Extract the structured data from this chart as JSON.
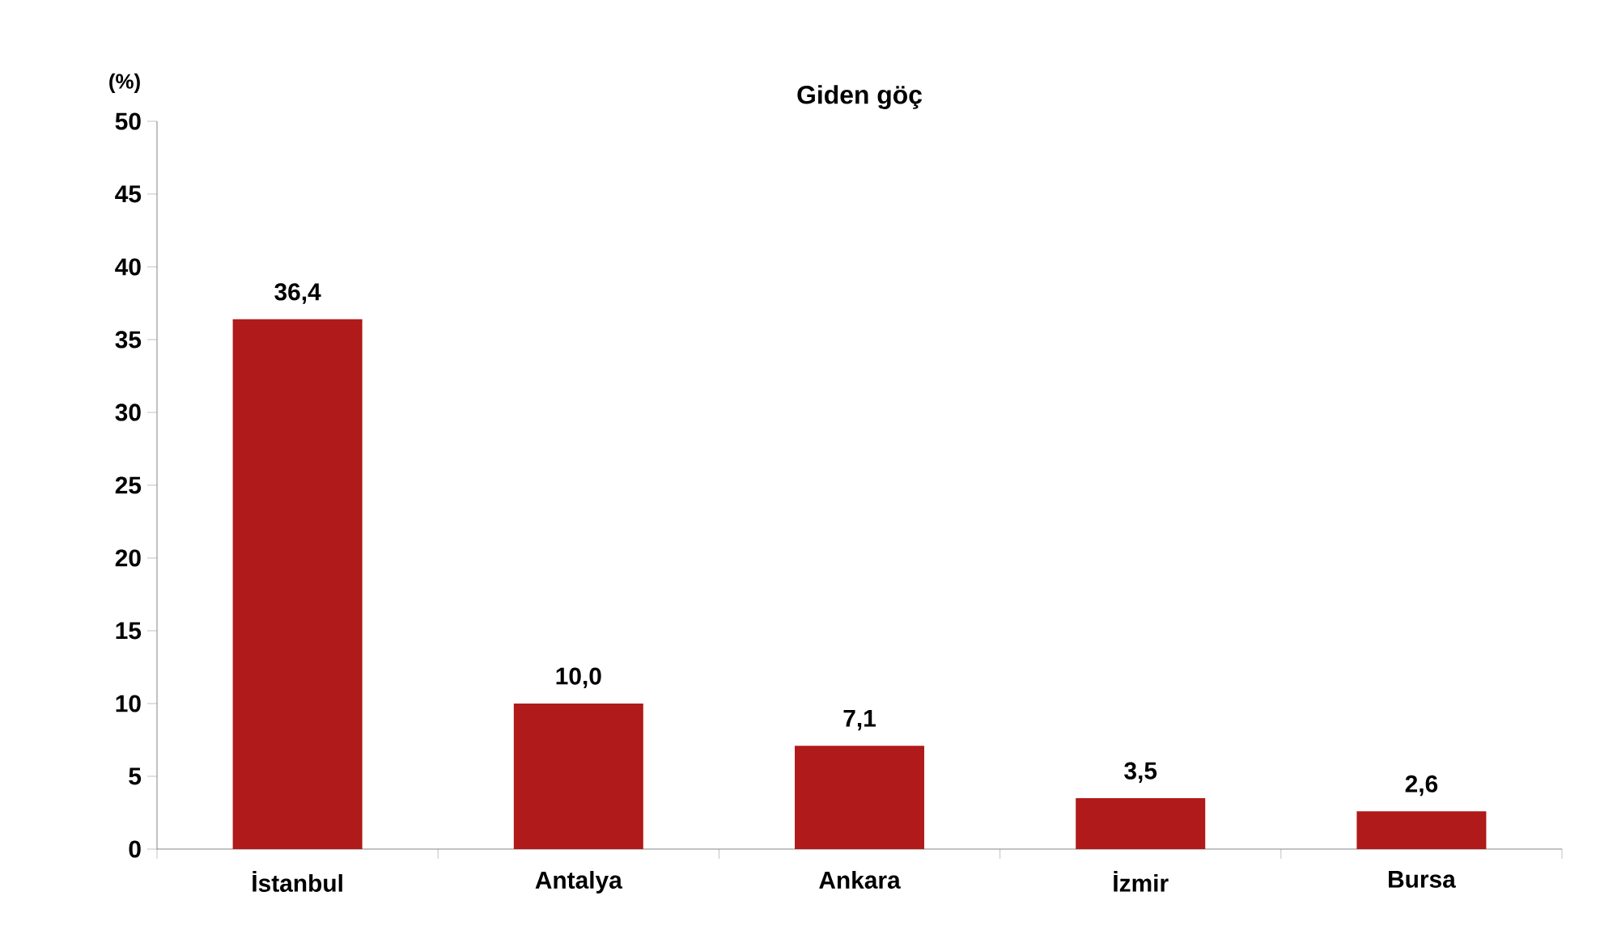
{
  "chart_data": {
    "type": "bar",
    "title": "Giden göç",
    "ylabel": "(%)",
    "categories": [
      "İstanbul",
      "Antalya",
      "Ankara",
      "İzmir",
      "Bursa"
    ],
    "values": [
      36.4,
      10.0,
      7.1,
      3.5,
      2.6
    ],
    "value_labels": [
      "36,4",
      "10,0",
      "7,1",
      "3,5",
      "2,6"
    ],
    "color": "#b01a1a",
    "ylim": [
      0,
      50
    ],
    "yticks": [
      0,
      5,
      10,
      15,
      20,
      25,
      30,
      35,
      40,
      45,
      50
    ],
    "grid": false
  }
}
